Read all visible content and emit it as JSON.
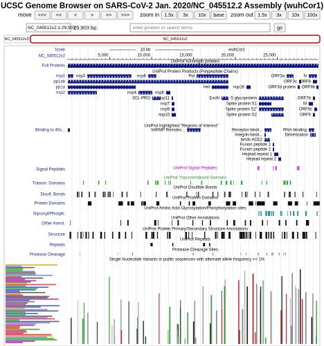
{
  "header": {
    "title": "UCSC Genome Browser on SARS-CoV-2 Jan. 2020/NC_045512.2 Assembly (wuhCor1)"
  },
  "nav": {
    "move_label": "move",
    "move_buttons": [
      "<<<",
      "<<",
      "<",
      ">",
      ">>",
      ">>>"
    ],
    "zoom_in_label": "zoom in",
    "zoom_in_buttons": [
      "1.5x",
      "3x",
      "10x",
      "base"
    ],
    "zoom_out_label": "zoom out",
    "zoom_out_buttons": [
      "1.5x",
      "3x",
      "10x",
      "100x"
    ]
  },
  "position": {
    "value": "NC_045512v2:1-29,903",
    "size": "29,903 bp.",
    "placeholder": "enter position or search terms",
    "go": "go"
  },
  "ideogram": {
    "label": "NC_045512v2",
    "band": "NC_045512v2"
  },
  "ruler": {
    "label": "Scale",
    "chrom": "NC_045512v2",
    "span": "10 kb",
    "assembly": "wuhCor1",
    "ticks": [
      {
        "value": 5000,
        "label": "5,000"
      },
      {
        "value": 10000,
        "label": "10,000"
      },
      {
        "value": 15000,
        "label": "15,000"
      },
      {
        "value": 20000,
        "label": "20,000"
      },
      {
        "value": 25000,
        "label": "25,000"
      }
    ]
  },
  "full_proteins": {
    "label": "Full Proteins",
    "title": "UniProt full-length proteins"
  },
  "products": {
    "row_labels": [
      "nsp1",
      "pp1ab",
      "pp1a",
      "nsp2"
    ],
    "title": "UniProt Protein Products (Polypeptide Chains)",
    "features": [
      "nsp3",
      "nsp6",
      "Pol",
      "ORF3a",
      "N",
      "ORF3c",
      "ORF8",
      "Hel",
      "nsp16",
      "ORF3d protein",
      "ORF9b",
      "nsp4",
      "nsp8",
      "3CL-PRO",
      "nsp11",
      "ExoN",
      "S glycoprotein",
      "ORF7b",
      "nsp7",
      "Spike protein S1",
      "M",
      "nsp9",
      "Spike protein S2'",
      "ORF9c",
      "nsp10",
      "Spike protein S2",
      "ORF6"
    ]
  },
  "regions": {
    "row_label": "Binding to 40s...",
    "title": "UniProt highlighted \"Regions of Interest\"",
    "features": [
      "IntRMP Remdes...",
      "Receptor-bindi...",
      "RNA-binding",
      "Integrin-bindi...",
      "Dimerization",
      "binds ACE2",
      "Fusion peptide 1",
      "Fusion peptide 2",
      "Heptad repeat 1",
      "Heptad repeat 2"
    ]
  },
  "tracks": [
    {
      "label": "Signal Peptides",
      "title": "UniProt Signal Peptides"
    },
    {
      "label": "Transm. Domains",
      "title": "UniProt Transmembrane Domains"
    },
    {
      "label": "Disulf. Bonds",
      "title": "UniProt Disulfide Bonds"
    },
    {
      "label": "Protein Domains",
      "title": "UniProt Protein Domains"
    },
    {
      "label": "Glycosyl/Phosph.",
      "title": "UniProt Amino Acid Glycosylation/Phosphorylation sites"
    },
    {
      "label": "Other Annot.",
      "title": "UniProt Other Annotations"
    },
    {
      "label": "Structure",
      "title": "UniProt Protein Primary/Secondary Structure Annotations"
    },
    {
      "label": "Repeats",
      "title": "UniProt Repeats"
    },
    {
      "label": "Protease Cleavage",
      "title": "Protease Cleavage Sites"
    }
  ],
  "snv": {
    "title": "Single Nucleotide Variants in public sequences with alternate allele frequency >= 1%"
  }
}
